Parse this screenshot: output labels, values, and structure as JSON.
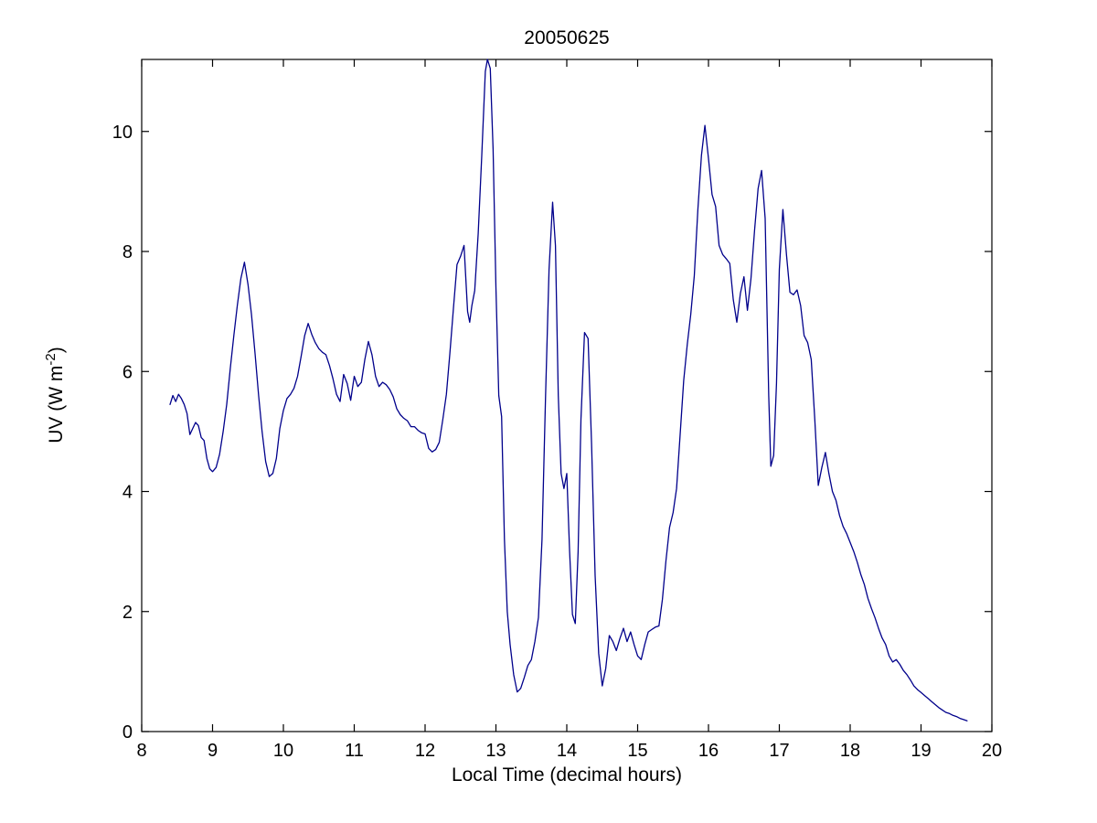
{
  "figure": {
    "title": "20050625",
    "xlabel": "Local Time (decimal hours)",
    "ylabel_prefix": "UV (W m",
    "ylabel_sup": "-2",
    "ylabel_suffix": ")"
  },
  "chart_data": {
    "type": "line",
    "title": "20050625",
    "xlabel": "Local Time (decimal hours)",
    "ylabel": "UV (W m^-2)",
    "xlim": [
      8,
      20
    ],
    "ylim": [
      0,
      11.2
    ],
    "xticks": [
      8,
      9,
      10,
      11,
      12,
      13,
      14,
      15,
      16,
      17,
      18,
      19,
      20
    ],
    "yticks": [
      0,
      2,
      4,
      6,
      8,
      10
    ],
    "grid": false,
    "legend": null,
    "line_color": "#00008B",
    "axis_color": "#000000",
    "points": [
      [
        8.4,
        5.45
      ],
      [
        8.44,
        5.6
      ],
      [
        8.48,
        5.5
      ],
      [
        8.52,
        5.62
      ],
      [
        8.56,
        5.55
      ],
      [
        8.6,
        5.45
      ],
      [
        8.64,
        5.3
      ],
      [
        8.68,
        4.95
      ],
      [
        8.72,
        5.05
      ],
      [
        8.76,
        5.15
      ],
      [
        8.8,
        5.1
      ],
      [
        8.84,
        4.9
      ],
      [
        8.88,
        4.85
      ],
      [
        8.92,
        4.55
      ],
      [
        8.96,
        4.38
      ],
      [
        9.0,
        4.33
      ],
      [
        9.05,
        4.4
      ],
      [
        9.1,
        4.62
      ],
      [
        9.15,
        5.0
      ],
      [
        9.2,
        5.45
      ],
      [
        9.25,
        6.05
      ],
      [
        9.3,
        6.6
      ],
      [
        9.35,
        7.1
      ],
      [
        9.4,
        7.55
      ],
      [
        9.45,
        7.82
      ],
      [
        9.5,
        7.45
      ],
      [
        9.55,
        6.95
      ],
      [
        9.6,
        6.3
      ],
      [
        9.65,
        5.6
      ],
      [
        9.7,
        5.0
      ],
      [
        9.75,
        4.5
      ],
      [
        9.8,
        4.25
      ],
      [
        9.85,
        4.3
      ],
      [
        9.9,
        4.55
      ],
      [
        9.95,
        5.05
      ],
      [
        10.0,
        5.35
      ],
      [
        10.05,
        5.55
      ],
      [
        10.1,
        5.62
      ],
      [
        10.15,
        5.72
      ],
      [
        10.2,
        5.92
      ],
      [
        10.25,
        6.25
      ],
      [
        10.3,
        6.6
      ],
      [
        10.35,
        6.8
      ],
      [
        10.4,
        6.62
      ],
      [
        10.45,
        6.48
      ],
      [
        10.5,
        6.38
      ],
      [
        10.55,
        6.32
      ],
      [
        10.6,
        6.28
      ],
      [
        10.65,
        6.1
      ],
      [
        10.7,
        5.88
      ],
      [
        10.75,
        5.62
      ],
      [
        10.8,
        5.5
      ],
      [
        10.85,
        5.95
      ],
      [
        10.9,
        5.8
      ],
      [
        10.95,
        5.52
      ],
      [
        11.0,
        5.92
      ],
      [
        11.05,
        5.75
      ],
      [
        11.1,
        5.82
      ],
      [
        11.15,
        6.2
      ],
      [
        11.2,
        6.5
      ],
      [
        11.25,
        6.28
      ],
      [
        11.3,
        5.92
      ],
      [
        11.35,
        5.75
      ],
      [
        11.4,
        5.82
      ],
      [
        11.45,
        5.78
      ],
      [
        11.5,
        5.7
      ],
      [
        11.55,
        5.58
      ],
      [
        11.6,
        5.38
      ],
      [
        11.65,
        5.28
      ],
      [
        11.7,
        5.22
      ],
      [
        11.75,
        5.18
      ],
      [
        11.8,
        5.08
      ],
      [
        11.85,
        5.08
      ],
      [
        11.9,
        5.02
      ],
      [
        11.95,
        4.98
      ],
      [
        12.0,
        4.96
      ],
      [
        12.05,
        4.72
      ],
      [
        12.1,
        4.66
      ],
      [
        12.15,
        4.7
      ],
      [
        12.2,
        4.82
      ],
      [
        12.25,
        5.2
      ],
      [
        12.3,
        5.62
      ],
      [
        12.35,
        6.3
      ],
      [
        12.4,
        7.05
      ],
      [
        12.45,
        7.78
      ],
      [
        12.5,
        7.92
      ],
      [
        12.55,
        8.1
      ],
      [
        12.6,
        7.0
      ],
      [
        12.63,
        6.82
      ],
      [
        12.66,
        7.1
      ],
      [
        12.7,
        7.35
      ],
      [
        12.75,
        8.3
      ],
      [
        12.8,
        9.6
      ],
      [
        12.85,
        11.0
      ],
      [
        12.88,
        11.25
      ],
      [
        12.92,
        11.05
      ],
      [
        12.96,
        9.7
      ],
      [
        13.0,
        7.4
      ],
      [
        13.04,
        5.6
      ],
      [
        13.08,
        5.25
      ],
      [
        13.12,
        3.2
      ],
      [
        13.16,
        2.0
      ],
      [
        13.2,
        1.45
      ],
      [
        13.25,
        0.95
      ],
      [
        13.3,
        0.66
      ],
      [
        13.35,
        0.72
      ],
      [
        13.4,
        0.9
      ],
      [
        13.45,
        1.1
      ],
      [
        13.5,
        1.2
      ],
      [
        13.55,
        1.5
      ],
      [
        13.6,
        1.9
      ],
      [
        13.65,
        3.2
      ],
      [
        13.7,
        5.6
      ],
      [
        13.75,
        7.7
      ],
      [
        13.8,
        8.82
      ],
      [
        13.84,
        8.1
      ],
      [
        13.88,
        5.6
      ],
      [
        13.92,
        4.3
      ],
      [
        13.96,
        4.05
      ],
      [
        14.0,
        4.3
      ],
      [
        14.04,
        3.0
      ],
      [
        14.08,
        1.95
      ],
      [
        14.12,
        1.8
      ],
      [
        14.16,
        3.0
      ],
      [
        14.2,
        5.2
      ],
      [
        14.25,
        6.65
      ],
      [
        14.3,
        6.55
      ],
      [
        14.35,
        4.8
      ],
      [
        14.4,
        2.6
      ],
      [
        14.45,
        1.3
      ],
      [
        14.5,
        0.76
      ],
      [
        14.55,
        1.05
      ],
      [
        14.6,
        1.6
      ],
      [
        14.65,
        1.5
      ],
      [
        14.7,
        1.35
      ],
      [
        14.75,
        1.55
      ],
      [
        14.8,
        1.72
      ],
      [
        14.85,
        1.5
      ],
      [
        14.9,
        1.66
      ],
      [
        14.95,
        1.45
      ],
      [
        15.0,
        1.26
      ],
      [
        15.05,
        1.2
      ],
      [
        15.1,
        1.45
      ],
      [
        15.15,
        1.66
      ],
      [
        15.2,
        1.7
      ],
      [
        15.25,
        1.74
      ],
      [
        15.3,
        1.76
      ],
      [
        15.35,
        2.2
      ],
      [
        15.4,
        2.85
      ],
      [
        15.45,
        3.4
      ],
      [
        15.5,
        3.65
      ],
      [
        15.55,
        4.05
      ],
      [
        15.6,
        4.95
      ],
      [
        15.65,
        5.85
      ],
      [
        15.7,
        6.45
      ],
      [
        15.75,
        6.95
      ],
      [
        15.8,
        7.6
      ],
      [
        15.85,
        8.7
      ],
      [
        15.9,
        9.6
      ],
      [
        15.95,
        10.1
      ],
      [
        16.0,
        9.55
      ],
      [
        16.05,
        8.95
      ],
      [
        16.1,
        8.75
      ],
      [
        16.15,
        8.1
      ],
      [
        16.2,
        7.95
      ],
      [
        16.25,
        7.88
      ],
      [
        16.3,
        7.8
      ],
      [
        16.35,
        7.2
      ],
      [
        16.4,
        6.82
      ],
      [
        16.45,
        7.3
      ],
      [
        16.5,
        7.58
      ],
      [
        16.55,
        7.02
      ],
      [
        16.6,
        7.55
      ],
      [
        16.65,
        8.35
      ],
      [
        16.7,
        9.05
      ],
      [
        16.75,
        9.35
      ],
      [
        16.8,
        8.55
      ],
      [
        16.85,
        5.6
      ],
      [
        16.88,
        4.42
      ],
      [
        16.92,
        4.6
      ],
      [
        16.96,
        5.8
      ],
      [
        17.0,
        7.7
      ],
      [
        17.05,
        8.7
      ],
      [
        17.1,
        7.95
      ],
      [
        17.15,
        7.32
      ],
      [
        17.2,
        7.28
      ],
      [
        17.25,
        7.36
      ],
      [
        17.3,
        7.1
      ],
      [
        17.35,
        6.6
      ],
      [
        17.4,
        6.48
      ],
      [
        17.45,
        6.2
      ],
      [
        17.5,
        5.2
      ],
      [
        17.55,
        4.1
      ],
      [
        17.6,
        4.4
      ],
      [
        17.65,
        4.65
      ],
      [
        17.7,
        4.3
      ],
      [
        17.75,
        4.0
      ],
      [
        17.8,
        3.85
      ],
      [
        17.85,
        3.6
      ],
      [
        17.9,
        3.42
      ],
      [
        17.95,
        3.3
      ],
      [
        18.0,
        3.15
      ],
      [
        18.05,
        3.0
      ],
      [
        18.1,
        2.82
      ],
      [
        18.15,
        2.62
      ],
      [
        18.2,
        2.45
      ],
      [
        18.25,
        2.22
      ],
      [
        18.3,
        2.05
      ],
      [
        18.35,
        1.9
      ],
      [
        18.4,
        1.72
      ],
      [
        18.45,
        1.56
      ],
      [
        18.5,
        1.45
      ],
      [
        18.55,
        1.26
      ],
      [
        18.6,
        1.16
      ],
      [
        18.65,
        1.2
      ],
      [
        18.7,
        1.12
      ],
      [
        18.75,
        1.02
      ],
      [
        18.8,
        0.95
      ],
      [
        18.85,
        0.86
      ],
      [
        18.9,
        0.76
      ],
      [
        18.95,
        0.7
      ],
      [
        19.0,
        0.65
      ],
      [
        19.05,
        0.6
      ],
      [
        19.1,
        0.55
      ],
      [
        19.15,
        0.5
      ],
      [
        19.2,
        0.45
      ],
      [
        19.25,
        0.4
      ],
      [
        19.3,
        0.36
      ],
      [
        19.35,
        0.32
      ],
      [
        19.4,
        0.3
      ],
      [
        19.45,
        0.27
      ],
      [
        19.5,
        0.25
      ],
      [
        19.55,
        0.22
      ],
      [
        19.6,
        0.2
      ],
      [
        19.65,
        0.18
      ]
    ]
  }
}
